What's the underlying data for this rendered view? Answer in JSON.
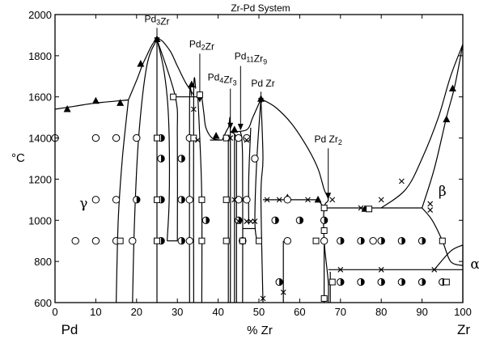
{
  "chart_data": {
    "type": "scatter",
    "title": "Zr-Pd System",
    "xlabel": "% Zr",
    "ylabel": "°C",
    "x_end_labels": {
      "left": "Pd",
      "right": "Zr"
    },
    "xlim": [
      0,
      100
    ],
    "ylim": [
      600,
      2000
    ],
    "x_ticks": [
      0,
      10,
      20,
      30,
      40,
      50,
      60,
      70,
      80,
      90,
      100
    ],
    "y_ticks": [
      600,
      800,
      1000,
      1200,
      1400,
      1600,
      1800,
      2000
    ],
    "grid": false,
    "phase_labels": [
      {
        "base": "Pd",
        "sub": "3",
        "tail": "Zr",
        "x": 25,
        "y": 1962
      },
      {
        "base": "Pd",
        "sub": "2",
        "tail": "Zr",
        "x": 36,
        "y": 1840
      },
      {
        "base": "Pd",
        "sub": "4",
        "tail": "Zr",
        "sub2": "3",
        "x": 41,
        "y": 1680
      },
      {
        "base": "Pd",
        "sub": "11",
        "tail": "Zr",
        "sub2": "9",
        "x": 48,
        "y": 1782
      },
      {
        "base": "Pd Zr",
        "x": 51,
        "y": 1650
      },
      {
        "base": "Pd Zr",
        "sub": "2",
        "x": 67,
        "y": 1378
      }
    ],
    "region_labels": [
      {
        "text": "γ",
        "x": 7,
        "y": 1060
      },
      {
        "text": "β",
        "x": 95,
        "y": 1120
      },
      {
        "text": "α",
        "x": 103,
        "y": 765
      }
    ],
    "label_arrows": [
      {
        "x": 25,
        "y_from": 1935,
        "y_to": 1885
      },
      {
        "x": 35.5,
        "y_from": 1810,
        "y_to": 1600
      },
      {
        "x": 43,
        "y_from": 1640,
        "y_to": 1470
      },
      {
        "x": 45.5,
        "y_from": 1750,
        "y_to": 1465
      },
      {
        "x": 50.5,
        "y_from": 1625,
        "y_to": 1590
      },
      {
        "x": 67,
        "y_from": 1350,
        "y_to": 1130
      }
    ],
    "boundaries": [
      {
        "points": [
          [
            0,
            1540
          ],
          [
            5,
            1555
          ],
          [
            10,
            1570
          ],
          [
            18,
            1585
          ]
        ]
      },
      {
        "points": [
          [
            15,
            600
          ],
          [
            15.5,
            1000
          ],
          [
            16.5,
            1300
          ],
          [
            18,
            1585
          ]
        ]
      },
      {
        "points": [
          [
            18,
            1585
          ],
          [
            20,
            1680
          ],
          [
            22,
            1780
          ],
          [
            25,
            1880
          ],
          [
            28,
            1830
          ],
          [
            30,
            1750
          ],
          [
            32,
            1670
          ],
          [
            34,
            1610
          ]
        ]
      },
      {
        "points": [
          [
            19,
            600
          ],
          [
            19.5,
            1000
          ],
          [
            20.5,
            1400
          ],
          [
            22.5,
            1750
          ],
          [
            25,
            1880
          ]
        ]
      },
      {
        "points": [
          [
            25,
            1880
          ],
          [
            25,
            600
          ]
        ]
      },
      {
        "points": [
          [
            25,
            1880
          ],
          [
            26.5,
            1750
          ],
          [
            27.5,
            1600
          ],
          [
            28,
            1400
          ],
          [
            28,
            1100
          ],
          [
            27.5,
            900
          ]
        ]
      },
      {
        "points": [
          [
            25,
            1880
          ],
          [
            29.5,
            1600
          ],
          [
            30,
            1400
          ],
          [
            30,
            900
          ]
        ]
      },
      {
        "points": [
          [
            27.5,
            900
          ],
          [
            30,
            900
          ]
        ]
      },
      {
        "points": [
          [
            29,
            1600
          ],
          [
            36,
            1600
          ]
        ]
      },
      {
        "points": [
          [
            33,
            600
          ],
          [
            33,
            1560
          ],
          [
            33.5,
            1605
          ]
        ]
      },
      {
        "points": [
          [
            34,
            600
          ],
          [
            34,
            1610
          ],
          [
            34.5,
            1640
          ]
        ]
      },
      {
        "points": [
          [
            35,
            1610
          ],
          [
            35.5,
            1400
          ],
          [
            36,
            1100
          ],
          [
            36,
            600
          ]
        ]
      },
      {
        "points": [
          [
            36,
            1600
          ],
          [
            36.5,
            1520
          ],
          [
            37,
            1450
          ],
          [
            38.5,
            1400
          ],
          [
            40.5,
            1390
          ]
        ]
      },
      {
        "points": [
          [
            38,
            1390
          ],
          [
            41,
            1390
          ]
        ]
      },
      {
        "points": [
          [
            41,
            1390
          ],
          [
            42.5,
            1450
          ],
          [
            43,
            1430
          ],
          [
            43,
            600
          ]
        ]
      },
      {
        "points": [
          [
            43,
            1430
          ],
          [
            44,
            1420
          ],
          [
            44.5,
            1400
          ]
        ]
      },
      {
        "points": [
          [
            43,
            1430
          ],
          [
            47,
            1440
          ],
          [
            48.5,
            1500
          ],
          [
            50.5,
            1590
          ]
        ]
      },
      {
        "points": [
          [
            42.5,
            1400
          ],
          [
            42.5,
            600
          ]
        ]
      },
      {
        "points": [
          [
            44,
            1420
          ],
          [
            44,
            600
          ]
        ]
      },
      {
        "points": [
          [
            44.5,
            1400
          ],
          [
            44.5,
            600
          ]
        ]
      },
      {
        "points": [
          [
            45.5,
            1430
          ],
          [
            46,
            1300
          ],
          [
            46,
            600
          ]
        ]
      },
      {
        "points": [
          [
            46,
            960
          ],
          [
            49,
            960
          ]
        ]
      },
      {
        "points": [
          [
            48,
            1450
          ],
          [
            47.5,
            1200
          ],
          [
            47.5,
            980
          ]
        ]
      },
      {
        "points": [
          [
            50.5,
            1590
          ],
          [
            49.5,
            1300
          ],
          [
            49,
            1000
          ],
          [
            49.5,
            900
          ]
        ]
      },
      {
        "points": [
          [
            50.5,
            1590
          ],
          [
            51,
            1300
          ],
          [
            50.5,
            1120
          ],
          [
            51,
            600
          ]
        ]
      },
      {
        "points": [
          [
            50.5,
            1590
          ],
          [
            54,
            1550
          ],
          [
            58,
            1470
          ],
          [
            62,
            1350
          ],
          [
            64.5,
            1250
          ],
          [
            66,
            1150
          ],
          [
            67,
            1100
          ],
          [
            66,
            1060
          ],
          [
            66,
            900
          ],
          [
            67,
            700
          ],
          [
            67,
            600
          ]
        ]
      },
      {
        "points": [
          [
            51,
            1100
          ],
          [
            64.5,
            1100
          ]
        ]
      },
      {
        "points": [
          [
            64.5,
            1100
          ],
          [
            66,
            1060
          ]
        ]
      },
      {
        "points": [
          [
            66,
            1060
          ],
          [
            90,
            1060
          ]
        ]
      },
      {
        "points": [
          [
            66,
            900
          ],
          [
            66,
            600
          ]
        ]
      },
      {
        "points": [
          [
            67,
            760
          ],
          [
            100,
            760
          ]
        ]
      },
      {
        "points": [
          [
            67.5,
            750
          ],
          [
            67.5,
            600
          ]
        ]
      },
      {
        "points": [
          [
            90,
            1060
          ],
          [
            92.5,
            1000
          ],
          [
            95,
            900
          ],
          [
            97,
            800
          ],
          [
            100,
            780
          ]
        ]
      },
      {
        "points": [
          [
            93,
            760
          ],
          [
            97,
            850
          ],
          [
            100,
            880
          ]
        ]
      },
      {
        "points": [
          [
            100,
            880
          ],
          [
            100,
            600
          ]
        ]
      },
      {
        "points": [
          [
            90,
            1060
          ],
          [
            93,
            1250
          ],
          [
            96,
            1500
          ],
          [
            98,
            1650
          ],
          [
            100,
            1855
          ]
        ]
      },
      {
        "points": [
          [
            80,
            1060
          ],
          [
            86,
            1150
          ],
          [
            90,
            1300
          ],
          [
            94,
            1500
          ],
          [
            97,
            1700
          ],
          [
            100,
            1855
          ]
        ]
      },
      {
        "points": [
          [
            56,
            600
          ],
          [
            56,
            900
          ]
        ]
      }
    ],
    "markers": {
      "triangle": [
        [
          3,
          1540
        ],
        [
          10,
          1580
        ],
        [
          16,
          1570
        ],
        [
          21,
          1760
        ],
        [
          25,
          1880
        ],
        [
          33.5,
          1660
        ],
        [
          39.5,
          1410
        ],
        [
          44,
          1440
        ],
        [
          50.5,
          1590
        ],
        [
          57,
          1110
        ],
        [
          64.5,
          1100
        ],
        [
          76,
          1055
        ],
        [
          96,
          1490
        ],
        [
          97.5,
          1640
        ]
      ],
      "circle": [
        [
          0,
          1400
        ],
        [
          10,
          1400
        ],
        [
          15,
          1400
        ],
        [
          20,
          1400
        ],
        [
          33,
          1400
        ],
        [
          45,
          1400
        ],
        [
          47,
          1400
        ],
        [
          49,
          1300
        ],
        [
          10,
          1100
        ],
        [
          15,
          1100
        ],
        [
          33,
          1100
        ],
        [
          45,
          1100
        ],
        [
          47,
          1100
        ],
        [
          57,
          1100
        ],
        [
          5,
          900
        ],
        [
          10,
          900
        ],
        [
          15,
          900
        ],
        [
          19,
          900
        ],
        [
          33,
          900
        ],
        [
          46,
          900
        ],
        [
          57,
          900
        ],
        [
          66,
          900
        ],
        [
          78,
          900
        ]
      ],
      "half_circle": [
        [
          26,
          1400
        ],
        [
          26,
          1300
        ],
        [
          31,
          1300
        ],
        [
          31,
          1100
        ],
        [
          20,
          1100
        ],
        [
          26,
          1100
        ],
        [
          31,
          900
        ],
        [
          26,
          900
        ],
        [
          37,
          1000
        ],
        [
          45,
          1000
        ],
        [
          54,
          1000
        ],
        [
          60,
          1000
        ],
        [
          55,
          700
        ],
        [
          66,
          1000
        ],
        [
          70,
          900
        ],
        [
          75,
          900
        ],
        [
          80,
          900
        ],
        [
          85,
          900
        ],
        [
          90,
          900
        ],
        [
          70,
          700
        ],
        [
          75,
          700
        ],
        [
          80,
          700
        ],
        [
          85,
          700
        ],
        [
          90,
          700
        ],
        [
          95,
          700
        ]
      ],
      "square": [
        [
          16,
          900
        ],
        [
          25,
          1400
        ],
        [
          25,
          1100
        ],
        [
          25,
          900
        ],
        [
          29,
          1600
        ],
        [
          35.5,
          1610
        ],
        [
          34,
          1400
        ],
        [
          36,
          1100
        ],
        [
          36,
          900
        ],
        [
          42,
          1400
        ],
        [
          42,
          1100
        ],
        [
          42,
          900
        ],
        [
          64,
          900
        ],
        [
          66,
          1060
        ],
        [
          66,
          950
        ],
        [
          68,
          700
        ],
        [
          77,
          1055
        ],
        [
          95,
          900
        ],
        [
          96,
          700
        ],
        [
          46,
          900
        ],
        [
          50,
          900
        ],
        [
          66,
          620
        ]
      ],
      "cross": [
        [
          34,
          1540
        ],
        [
          35,
          1390
        ],
        [
          43,
          1400
        ],
        [
          47,
          1390
        ],
        [
          44,
          1100
        ],
        [
          45,
          995
        ],
        [
          47,
          995
        ],
        [
          48,
          995
        ],
        [
          49,
          995
        ],
        [
          52,
          1100
        ],
        [
          55,
          1100
        ],
        [
          62,
          1100
        ],
        [
          68,
          1100
        ],
        [
          75,
          1060
        ],
        [
          80,
          1100
        ],
        [
          85,
          1190
        ],
        [
          92,
          1080
        ],
        [
          92,
          1050
        ],
        [
          70,
          760
        ],
        [
          80,
          760
        ],
        [
          93,
          760
        ],
        [
          51,
          620
        ],
        [
          56,
          650
        ]
      ]
    }
  }
}
